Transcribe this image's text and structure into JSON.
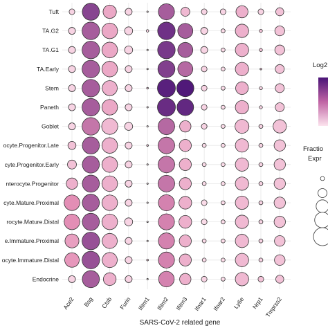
{
  "chart_data": {
    "type": "dot",
    "xlabel": "SARS-CoV-2 related gene",
    "genes": [
      "Ace2",
      "Bsg",
      "Ctsb",
      "Furin",
      "Ifitm1",
      "Ifitm2",
      "Ifitm3",
      "Ifnar1",
      "Ifnar2",
      "Ly6e",
      "Nrp1",
      "Tmprss2"
    ],
    "cell_types": [
      "Tuft",
      "TA.G2",
      "TA.G1",
      "TA.Early",
      "Stem",
      "Paneth",
      "Goblet",
      "Enterocyte.Progenitor.Late",
      "Enterocyte.Progenitor.Early",
      "Enterocyte.Progenitor",
      "Enterocyte.Mature.Proximal",
      "Enterocyte.Mature.Distal",
      "Enterocyte.Immature.Proximal",
      "Enterocyte.Immature.Distal",
      "Endocrine"
    ],
    "y_tick_labels": [
      "Tuft",
      "TA.G2",
      "TA.G1",
      "TA.Early",
      "Stem",
      "Paneth",
      "Goblet",
      "ocyte.Progenitor.Late",
      "cyte.Progenitor.Early",
      "nterocyte.Progenitor",
      "cyte.Mature.Proximal",
      "rocyte.Mature.Distal",
      "e.Immature.Proximal",
      "ocyte.Immature.Distal",
      "Endocrine"
    ],
    "fraction_expressed": [
      [
        0.1,
        0.9,
        0.55,
        0.15,
        0.0,
        0.8,
        0.25,
        0.1,
        0.1,
        0.45,
        0.1,
        0.2
      ],
      [
        0.15,
        0.95,
        0.75,
        0.2,
        0.02,
        0.95,
        0.7,
        0.15,
        0.05,
        0.55,
        0.03,
        0.3
      ],
      [
        0.15,
        0.95,
        0.75,
        0.2,
        0.0,
        0.95,
        0.7,
        0.15,
        0.05,
        0.55,
        0.03,
        0.3
      ],
      [
        0.15,
        0.95,
        0.75,
        0.15,
        0.0,
        0.9,
        0.7,
        0.1,
        0.05,
        0.55,
        0.01,
        0.25
      ],
      [
        0.15,
        0.95,
        0.7,
        0.15,
        0.01,
        1.0,
        0.9,
        0.1,
        0.05,
        0.5,
        0.03,
        0.25
      ],
      [
        0.15,
        0.95,
        0.75,
        0.15,
        0.0,
        1.0,
        0.85,
        0.1,
        0.05,
        0.55,
        0.03,
        0.25
      ],
      [
        0.15,
        0.95,
        0.8,
        0.2,
        0.0,
        0.85,
        0.4,
        0.1,
        0.05,
        0.6,
        0.05,
        0.55
      ],
      [
        0.2,
        0.9,
        0.75,
        0.15,
        0.01,
        0.85,
        0.45,
        0.05,
        0.05,
        0.55,
        0.05,
        0.4
      ],
      [
        0.25,
        0.9,
        0.75,
        0.15,
        0.0,
        0.85,
        0.45,
        0.05,
        0.05,
        0.55,
        0.05,
        0.4
      ],
      [
        0.4,
        0.9,
        0.75,
        0.15,
        0.0,
        0.85,
        0.45,
        0.05,
        0.05,
        0.55,
        0.05,
        0.4
      ],
      [
        0.75,
        0.9,
        0.75,
        0.15,
        0.0,
        0.8,
        0.5,
        0.1,
        0.05,
        0.55,
        0.05,
        0.4
      ],
      [
        0.75,
        0.9,
        0.75,
        0.2,
        0.0,
        0.8,
        0.5,
        0.1,
        0.05,
        0.55,
        0.05,
        0.4
      ],
      [
        0.6,
        0.95,
        0.7,
        0.15,
        0.0,
        0.8,
        0.45,
        0.05,
        0.05,
        0.55,
        0.05,
        0.35
      ],
      [
        0.65,
        0.95,
        0.7,
        0.15,
        0.01,
        0.8,
        0.45,
        0.05,
        0.05,
        0.55,
        0.05,
        0.35
      ],
      [
        0.15,
        0.9,
        0.5,
        0.15,
        0.0,
        0.75,
        0.4,
        0.1,
        0.05,
        0.55,
        0.1,
        0.2
      ]
    ],
    "log2_expression_level": [
      [
        0.1,
        0.8,
        0.35,
        0.1,
        0.0,
        0.7,
        0.25,
        0.1,
        0.1,
        0.3,
        0.1,
        0.2
      ],
      [
        0.1,
        0.7,
        0.35,
        0.1,
        0.1,
        0.88,
        0.7,
        0.1,
        0.05,
        0.3,
        0.2,
        0.2
      ],
      [
        0.1,
        0.7,
        0.35,
        0.1,
        0.0,
        0.85,
        0.7,
        0.1,
        0.05,
        0.3,
        0.2,
        0.2
      ],
      [
        0.1,
        0.7,
        0.35,
        0.1,
        0.0,
        0.82,
        0.65,
        0.1,
        0.05,
        0.3,
        0.2,
        0.2
      ],
      [
        0.1,
        0.7,
        0.3,
        0.1,
        0.2,
        0.95,
        0.98,
        0.1,
        0.05,
        0.3,
        0.1,
        0.2
      ],
      [
        0.1,
        0.7,
        0.35,
        0.1,
        0.0,
        0.9,
        0.92,
        0.1,
        0.05,
        0.3,
        0.1,
        0.2
      ],
      [
        0.1,
        0.6,
        0.25,
        0.1,
        0.0,
        0.65,
        0.3,
        0.1,
        0.05,
        0.25,
        0.1,
        0.2
      ],
      [
        0.2,
        0.7,
        0.3,
        0.1,
        0.2,
        0.6,
        0.3,
        0.05,
        0.05,
        0.25,
        0.1,
        0.2
      ],
      [
        0.2,
        0.7,
        0.3,
        0.1,
        0.0,
        0.6,
        0.3,
        0.05,
        0.05,
        0.25,
        0.1,
        0.2
      ],
      [
        0.3,
        0.7,
        0.3,
        0.1,
        0.0,
        0.6,
        0.3,
        0.05,
        0.05,
        0.25,
        0.1,
        0.2
      ],
      [
        0.5,
        0.7,
        0.3,
        0.1,
        0.0,
        0.55,
        0.3,
        0.05,
        0.05,
        0.25,
        0.1,
        0.2
      ],
      [
        0.5,
        0.7,
        0.3,
        0.1,
        0.0,
        0.55,
        0.3,
        0.05,
        0.05,
        0.25,
        0.1,
        0.2
      ],
      [
        0.4,
        0.75,
        0.3,
        0.1,
        0.0,
        0.55,
        0.3,
        0.05,
        0.05,
        0.25,
        0.1,
        0.2
      ],
      [
        0.45,
        0.75,
        0.3,
        0.1,
        0.2,
        0.55,
        0.3,
        0.05,
        0.05,
        0.25,
        0.1,
        0.2
      ],
      [
        0.1,
        0.7,
        0.3,
        0.1,
        0.0,
        0.55,
        0.3,
        0.1,
        0.05,
        0.25,
        0.2,
        0.2
      ]
    ],
    "legend": {
      "color_title": "Log2",
      "size_title_line1": "Fractio",
      "size_title_line2": "Expr",
      "size_keys": [
        0.05,
        0.25,
        0.5,
        0.75,
        1.0
      ]
    },
    "colors": {
      "low": "#fce4ee",
      "mid": "#e38eb5",
      "high": "#4a1477",
      "grid": "#e6e6e6",
      "stroke": "#333333"
    },
    "grid": true
  }
}
